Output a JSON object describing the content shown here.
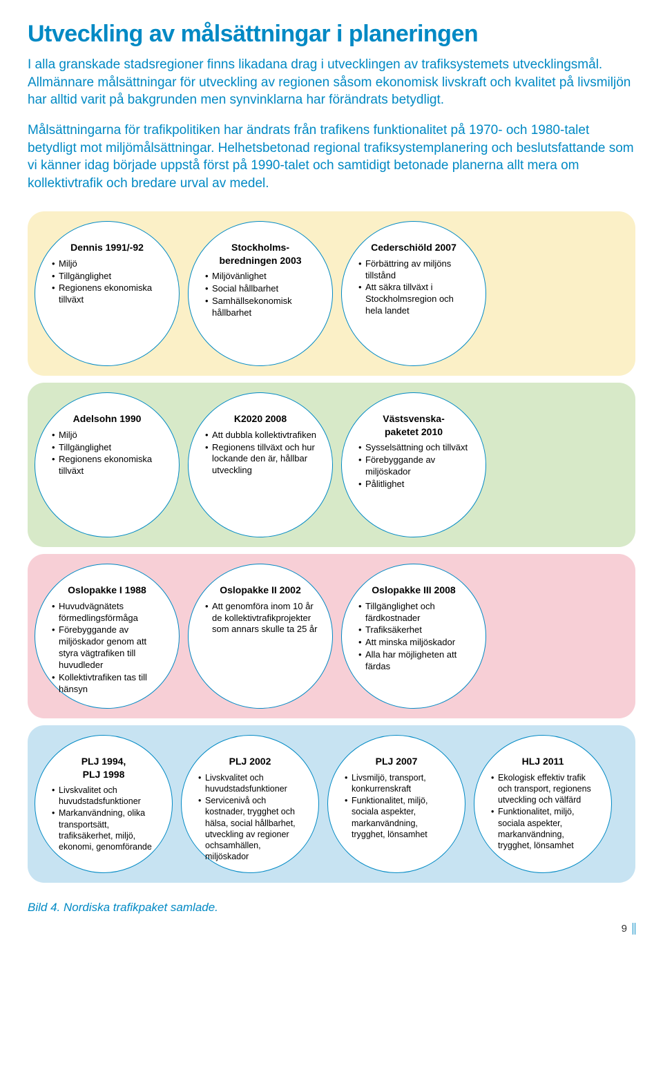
{
  "heading": "Utveckling av målsättningar i planeringen",
  "intro": "I alla granskade stadsregioner finns likadana drag i utvecklingen av trafiksystemets utvecklingsmål. Allmännare målsättningar för utveckling av regionen såsom ekonomisk livskraft och kvalitet på livsmiljön har alltid varit på bakgrunden men synvinklarna har förändrats betydligt.",
  "body": "Målsättningarna för trafikpolitiken har ändrats från trafikens funktionalitet på 1970- och 1980-talet betydligt mot miljömålsättningar. Helhetsbetonad regional trafiksystemplanering och beslutsfattande som vi känner idag började uppstå först på 1990-talet och samtidigt betonade planerna allt mera om kollektivtrafik och bredare urval av medel.",
  "rows": [
    {
      "bg": "#fbf0c7",
      "circles": [
        {
          "title": "Dennis 1991/-92",
          "items": [
            "Miljö",
            "Tillgänglighet",
            "Regionens ekonomiska tillväxt"
          ]
        },
        {
          "title": "Stockholms-beredningen 2003",
          "items": [
            "Miljövänlighet",
            "Social hållbarhet",
            "Samhällsekonomisk hållbarhet"
          ]
        },
        {
          "title": "Cederschiöld 2007",
          "items": [
            "Förbättring av miljöns tillstånd",
            "Att säkra tillväxt i Stockholmsregion och hela landet"
          ]
        }
      ]
    },
    {
      "bg": "#d7e9c8",
      "circles": [
        {
          "title": "Adelsohn 1990",
          "items": [
            "Miljö",
            "Tillgänglighet",
            "Regionens ekonomiska tillväxt"
          ]
        },
        {
          "title": "K2020 2008",
          "items": [
            "Att dubbla kollektivtrafiken",
            "Regionens tillväxt och hur lockande den är, hållbar utveckling"
          ]
        },
        {
          "title": "Västsvenska-paketet 2010",
          "items": [
            "Sysselsättning och tillväxt",
            "Förebyggande av miljöskador",
            "Pålitlighet"
          ]
        }
      ]
    },
    {
      "bg": "#f7cfd6",
      "circles": [
        {
          "title": "Oslopakke I 1988",
          "items": [
            "Huvudvägnätets förmedlingsförmåga",
            "Förebyggande av miljöskador genom att styra vägtrafiken till huvudleder",
            "Kollektivtrafiken tas till hänsyn"
          ]
        },
        {
          "title": "Oslopakke II 2002",
          "items": [
            "Att genomföra inom 10 år de kollektivtrafikprojekter som annars skulle ta 25 år"
          ]
        },
        {
          "title": "Oslopakke III 2008",
          "items": [
            "Tillgänglighet och färdkostnader",
            "Trafiksäkerhet",
            "Att minska miljöskador",
            "Alla har möjligheten att färdas"
          ]
        }
      ]
    },
    {
      "bg": "#c7e3f2",
      "small": true,
      "circles": [
        {
          "title": "PLJ 1994, PLJ 1998",
          "items": [
            "Livskvalitet och huvudstadsfunktioner",
            "Markanvändning, olika transportsätt, trafiksäkerhet, miljö, ekonomi, genomförande"
          ]
        },
        {
          "title": "PLJ 2002",
          "items": [
            "Livskvalitet och huvudstadsfunktioner",
            "Servicenivå och kostnader, trygghet och hälsa, social hållbarhet, utveckling av regioner ochsamhällen, miljöskador"
          ]
        },
        {
          "title": "PLJ 2007",
          "items": [
            "Livsmiljö, transport, konkurrenskraft",
            "Funktionalitet, miljö, sociala aspekter, markanvändning, trygghet, lönsamhet"
          ]
        },
        {
          "title": "HLJ 2011",
          "items": [
            "Ekologisk effektiv trafik och transport, regionens utveckling och välfärd",
            "Funktionalitet, miljö, sociala aspekter, markanvändning, trygghet, lönsamhet"
          ]
        }
      ]
    }
  ],
  "caption": "Bild 4. Nordiska trafikpaket samlade.",
  "pagenum": "9",
  "colors": {
    "accent": "#0089c4"
  }
}
